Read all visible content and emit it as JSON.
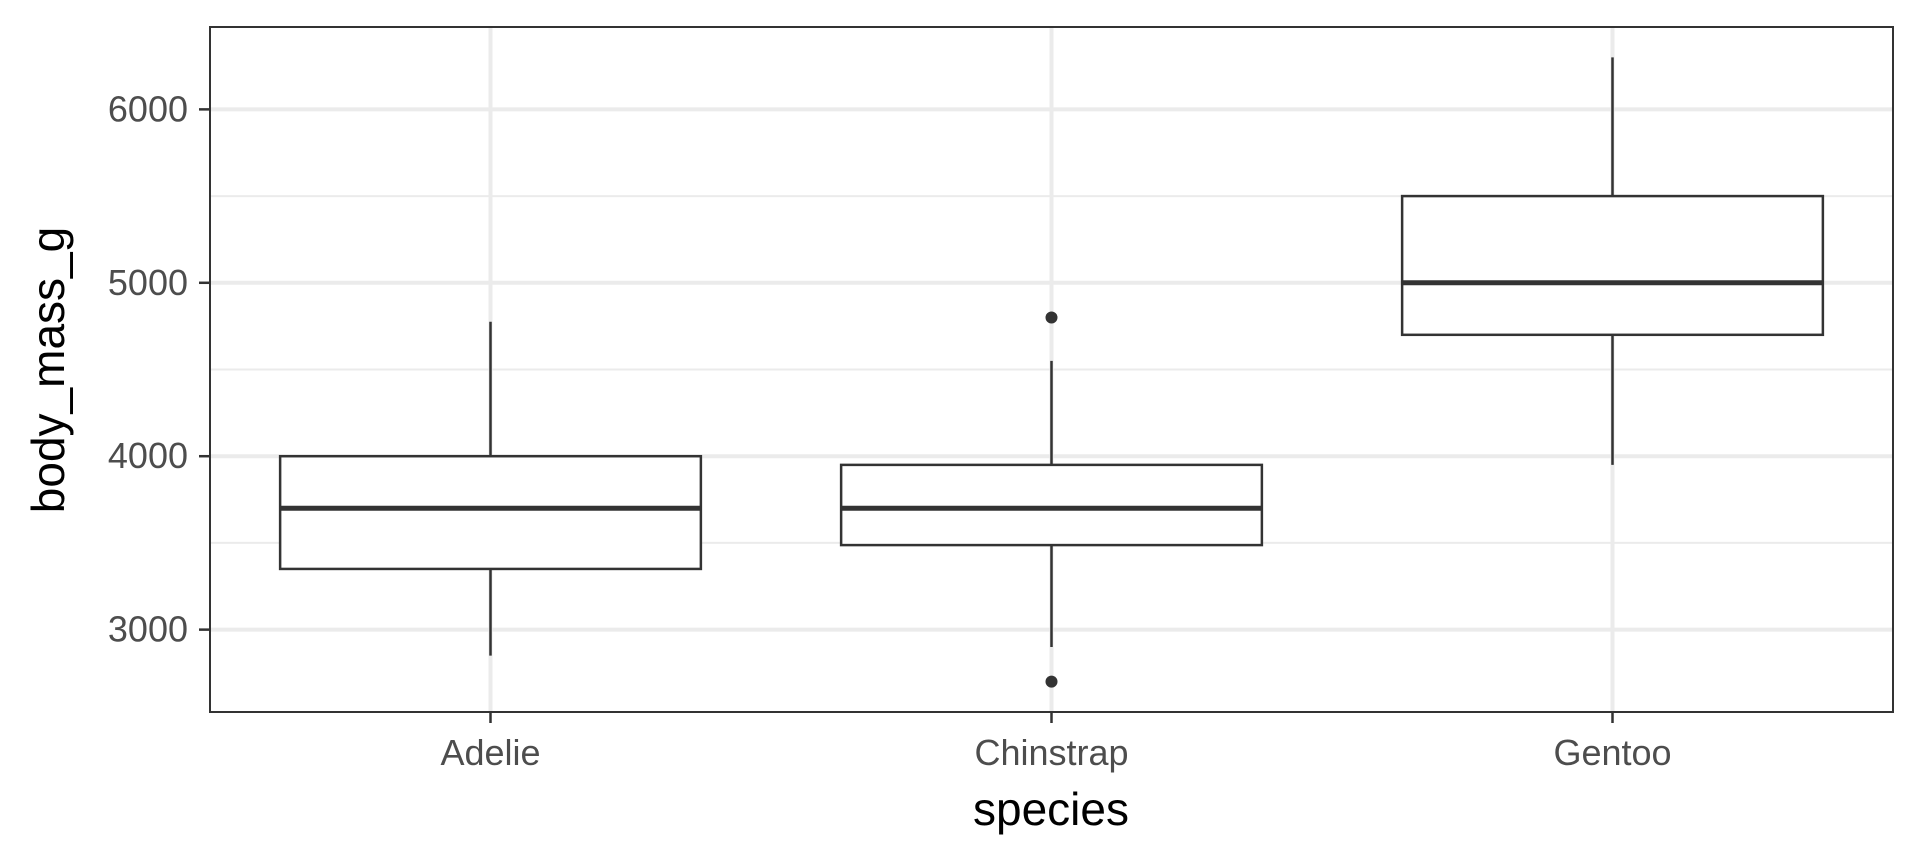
{
  "chart_data": {
    "type": "boxplot",
    "title": "",
    "xlabel": "species",
    "ylabel": "body_mass_g",
    "categories": [
      "Adelie",
      "Chinstrap",
      "Gentoo"
    ],
    "boxes": [
      {
        "category": "Adelie",
        "whisker_low": 2850,
        "q1": 3350,
        "median": 3700,
        "q3": 4000,
        "whisker_high": 4775,
        "outliers": []
      },
      {
        "category": "Chinstrap",
        "whisker_low": 2900,
        "q1": 3487.5,
        "median": 3700,
        "q3": 3950,
        "whisker_high": 4550,
        "outliers": [
          2700,
          4800
        ]
      },
      {
        "category": "Gentoo",
        "whisker_low": 3950,
        "q1": 4700,
        "median": 5000,
        "q3": 5500,
        "whisker_high": 6300,
        "outliers": []
      }
    ],
    "ylim": [
      2525,
      6475
    ],
    "y_ticks": [
      3000,
      4000,
      5000,
      6000
    ],
    "y_tick_labels": [
      "3000",
      "4000",
      "5000",
      "6000"
    ],
    "y_minor_ticks": [
      3500,
      4500,
      5500
    ],
    "grid": true,
    "legend": "none",
    "colors": {
      "box_line": "#333333",
      "grid": "#ebebeb",
      "panel_border": "#333333",
      "tick_text": "#4d4d4d",
      "title_text": "#000000",
      "background": "#ffffff"
    }
  }
}
